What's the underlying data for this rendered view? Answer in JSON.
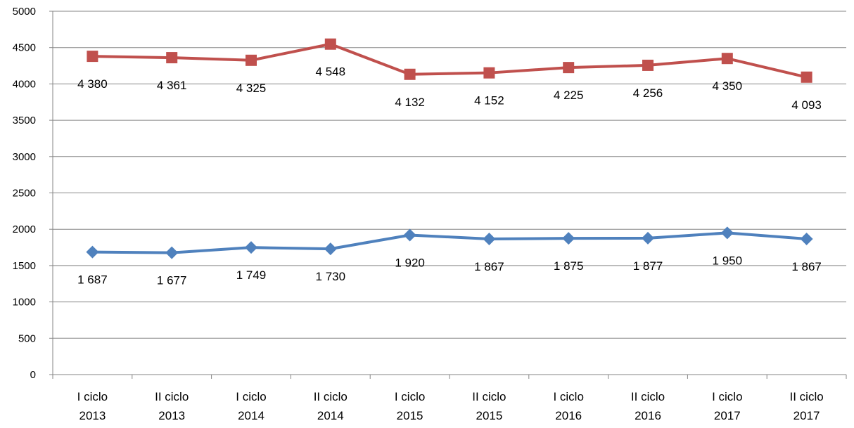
{
  "chart_data": {
    "type": "line",
    "categories": [
      "I ciclo 2013",
      "II ciclo 2013",
      "I ciclo 2014",
      "II ciclo 2014",
      "I ciclo 2015",
      "II ciclo 2015",
      "I ciclo 2016",
      "II ciclo 2016",
      "I ciclo 2017",
      "II ciclo 2017"
    ],
    "series": [
      {
        "color": "#4f81bd",
        "marker": "diamond",
        "values": [
          1687,
          1677,
          1749,
          1730,
          1920,
          1867,
          1875,
          1877,
          1950,
          1867
        ],
        "value_labels": [
          "1 687",
          "1 677",
          "1 749",
          "1 730",
          "1 920",
          "1 867",
          "1 875",
          "1 877",
          "1 950",
          "1 867"
        ]
      },
      {
        "color": "#c0504d",
        "marker": "square",
        "values": [
          4380,
          4361,
          4325,
          4548,
          4132,
          4152,
          4225,
          4256,
          4350,
          4093
        ],
        "value_labels": [
          "4 380",
          "4 361",
          "4 325",
          "4 548",
          "4 132",
          "4 152",
          "4 225",
          "4 256",
          "4 350",
          "4 093"
        ]
      }
    ],
    "ylim": [
      0,
      5000
    ],
    "yticks": [
      0,
      500,
      1000,
      1500,
      2000,
      2500,
      3000,
      3500,
      4000,
      4500,
      5000
    ],
    "grid": true
  }
}
